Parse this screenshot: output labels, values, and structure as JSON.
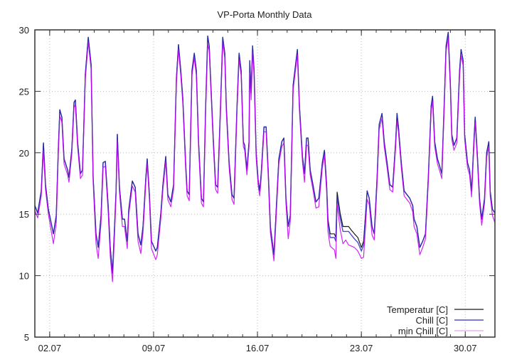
{
  "chart_data": {
    "type": "line",
    "title": "VP-Porta Monthly Data",
    "xlabel": "",
    "ylabel": "",
    "xlim": [
      1,
      32
    ],
    "ylim": [
      5,
      30
    ],
    "x_unit": "day of July",
    "grid": true,
    "legend_position": "bottom-right",
    "yticks": [
      5,
      10,
      15,
      20,
      25,
      30
    ],
    "xticks": [
      {
        "value": 2,
        "label": "02.07"
      },
      {
        "value": 9,
        "label": "09.07"
      },
      {
        "value": 16,
        "label": "16.07"
      },
      {
        "value": 23,
        "label": "23.07"
      },
      {
        "value": 30,
        "label": "30.07"
      }
    ],
    "x": [
      1.0,
      1.19,
      1.43,
      1.58,
      1.72,
      1.91,
      2.15,
      2.25,
      2.44,
      2.58,
      2.68,
      2.82,
      2.97,
      3.21,
      3.3,
      3.49,
      3.64,
      3.73,
      3.88,
      4.07,
      4.21,
      4.4,
      4.6,
      4.79,
      4.93,
      5.12,
      5.27,
      5.46,
      5.6,
      5.75,
      5.94,
      6.08,
      6.23,
      6.37,
      6.47,
      6.56,
      6.7,
      6.9,
      7.04,
      7.23,
      7.33,
      7.57,
      7.76,
      7.95,
      8.14,
      8.29,
      8.48,
      8.57,
      8.72,
      8.86,
      9.15,
      9.25,
      9.49,
      9.63,
      9.82,
      9.96,
      10.16,
      10.35,
      10.54,
      10.68,
      10.83,
      10.97,
      11.16,
      11.26,
      11.4,
      11.59,
      11.74,
      11.88,
      12.03,
      12.22,
      12.36,
      12.51,
      12.65,
      12.75,
      12.84,
      13.03,
      13.18,
      13.32,
      13.51,
      13.66,
      13.8,
      13.9,
      14.09,
      14.28,
      14.42,
      14.62,
      14.76,
      14.9,
      15.05,
      15.14,
      15.29,
      15.43,
      15.48,
      15.57,
      15.67,
      15.77,
      15.91,
      16.05,
      16.15,
      16.25,
      16.44,
      16.58,
      16.72,
      16.87,
      17.11,
      17.25,
      17.44,
      17.64,
      17.78,
      17.92,
      18.07,
      18.21,
      18.4,
      18.69,
      18.83,
      19.03,
      19.17,
      19.31,
      19.41,
      19.55,
      19.74,
      19.94,
      20.13,
      20.37,
      20.51,
      20.66,
      20.75,
      20.9,
      21.18,
      21.28,
      21.37,
      21.57,
      21.76,
      21.95,
      22.14,
      22.33,
      22.53,
      22.76,
      23.0,
      23.15,
      23.29,
      23.39,
      23.53,
      23.72,
      23.87,
      24.06,
      24.2,
      24.39,
      24.54,
      24.73,
      24.92,
      25.11,
      25.31,
      25.4,
      25.5,
      25.69,
      25.88,
      26.07,
      26.26,
      26.46,
      26.55,
      26.74,
      26.94,
      27.13,
      27.32,
      27.51,
      27.7,
      27.8,
      27.94,
      28.13,
      28.28,
      28.42,
      28.61,
      28.71,
      28.85,
      29.0,
      29.09,
      29.24,
      29.43,
      29.62,
      29.72,
      29.86,
      29.96,
      30.15,
      30.29,
      30.43,
      30.58,
      30.67,
      30.82,
      30.96,
      31.11,
      31.3,
      31.44,
      31.59,
      31.68,
      31.83,
      32.0
    ],
    "series": [
      {
        "name": "Temperatur [C]",
        "color": "#1a1a1a",
        "y": [
          15.7,
          15.1,
          16.9,
          20.8,
          17.4,
          15.4,
          14.0,
          13.4,
          14.9,
          20.3,
          23.5,
          22.9,
          19.5,
          18.6,
          18.0,
          20.3,
          24.1,
          24.3,
          20.9,
          18.3,
          18.6,
          26.4,
          29.4,
          27.2,
          18.0,
          13.4,
          12.3,
          14.9,
          19.2,
          19.3,
          15.7,
          12.3,
          10.2,
          14.0,
          16.9,
          21.5,
          17.2,
          14.6,
          14.6,
          12.8,
          15.4,
          17.7,
          17.2,
          13.4,
          12.5,
          14.0,
          18.0,
          19.5,
          16.6,
          12.8,
          12.0,
          12.3,
          15.1,
          17.4,
          19.7,
          16.6,
          16.0,
          17.4,
          26.1,
          28.8,
          26.7,
          24.4,
          19.2,
          16.9,
          16.6,
          26.7,
          28.1,
          26.7,
          20.9,
          16.3,
          16.0,
          23.8,
          29.5,
          28.7,
          26.1,
          20.9,
          17.4,
          17.2,
          23.8,
          29.4,
          28.1,
          23.8,
          19.2,
          16.6,
          16.3,
          23.8,
          28.1,
          26.7,
          20.9,
          20.6,
          18.6,
          20.9,
          27.5,
          24.9,
          28.7,
          26.7,
          20.0,
          17.7,
          16.9,
          18.3,
          22.1,
          22.1,
          18.6,
          14.0,
          11.7,
          15.1,
          19.5,
          20.9,
          21.2,
          16.3,
          14.0,
          14.9,
          25.5,
          28.4,
          23.8,
          19.7,
          18.3,
          21.2,
          21.2,
          18.6,
          17.4,
          16.0,
          16.3,
          19.2,
          20.2,
          17.4,
          14.6,
          13.4,
          13.4,
          13.1,
          16.8,
          15.1,
          14.0,
          14.0,
          14.0,
          13.7,
          13.4,
          13.1,
          12.3,
          12.8,
          15.1,
          16.9,
          16.3,
          14.0,
          13.4,
          18.0,
          22.3,
          23.2,
          20.9,
          19.2,
          17.4,
          17.2,
          20.9,
          23.2,
          22.1,
          19.2,
          16.9,
          16.6,
          16.3,
          15.7,
          14.6,
          14.0,
          12.3,
          12.8,
          13.4,
          18.0,
          23.8,
          24.6,
          20.9,
          19.5,
          18.9,
          18.3,
          24.9,
          28.7,
          29.8,
          25.5,
          21.5,
          20.6,
          21.2,
          26.7,
          28.4,
          27.5,
          21.5,
          19.2,
          18.6,
          16.9,
          20.9,
          22.9,
          19.7,
          16.3,
          14.6,
          16.3,
          20.0,
          20.9,
          16.9,
          15.4,
          15.1
        ]
      },
      {
        "name": "Chill [C]",
        "color": "#2c2cc4",
        "y": [
          15.7,
          15.1,
          16.9,
          20.8,
          17.4,
          15.4,
          14.0,
          13.4,
          14.9,
          20.3,
          23.5,
          22.9,
          19.5,
          18.6,
          18.0,
          20.3,
          24.1,
          24.3,
          20.9,
          18.3,
          18.6,
          26.4,
          29.4,
          27.2,
          18.0,
          13.4,
          12.3,
          14.9,
          19.2,
          19.3,
          15.7,
          12.3,
          10.2,
          14.0,
          16.9,
          21.5,
          17.2,
          14.6,
          14.6,
          12.8,
          15.4,
          17.7,
          17.2,
          13.4,
          12.5,
          14.0,
          18.0,
          19.5,
          16.6,
          12.8,
          12.0,
          12.3,
          15.1,
          17.4,
          19.7,
          16.6,
          16.0,
          17.4,
          26.1,
          28.8,
          26.7,
          24.4,
          19.2,
          16.9,
          16.6,
          26.7,
          28.1,
          26.7,
          20.9,
          16.3,
          16.0,
          23.8,
          29.5,
          28.7,
          26.1,
          20.9,
          17.4,
          17.2,
          23.8,
          29.4,
          28.1,
          23.8,
          19.2,
          16.6,
          16.3,
          23.8,
          28.1,
          26.7,
          20.9,
          20.6,
          18.6,
          20.9,
          27.5,
          24.9,
          28.7,
          26.7,
          20.0,
          17.7,
          16.9,
          18.3,
          22.1,
          22.1,
          18.6,
          14.0,
          11.7,
          15.1,
          19.5,
          20.9,
          21.2,
          16.3,
          14.0,
          14.9,
          25.5,
          28.4,
          23.8,
          19.7,
          18.3,
          21.2,
          21.2,
          18.6,
          17.4,
          16.0,
          16.3,
          19.2,
          20.2,
          17.4,
          14.4,
          13.1,
          13.1,
          12.8,
          16.4,
          14.7,
          13.6,
          13.6,
          13.6,
          13.3,
          13.0,
          12.7,
          12.0,
          12.5,
          15.1,
          16.9,
          16.3,
          14.0,
          13.4,
          18.0,
          22.3,
          23.2,
          20.9,
          19.2,
          17.4,
          17.2,
          20.9,
          23.2,
          22.1,
          19.2,
          16.9,
          16.6,
          16.3,
          15.7,
          14.6,
          14.0,
          12.3,
          12.8,
          13.4,
          18.0,
          23.8,
          24.6,
          20.9,
          19.5,
          18.9,
          18.3,
          24.9,
          28.7,
          29.8,
          25.5,
          21.5,
          20.6,
          21.2,
          26.7,
          28.4,
          27.5,
          21.5,
          19.2,
          18.6,
          16.9,
          20.9,
          22.9,
          19.7,
          16.3,
          14.6,
          16.3,
          20.0,
          20.9,
          16.9,
          15.4,
          15.1
        ]
      },
      {
        "name": "min Chill [C]",
        "color": "#c400f4",
        "legend_color": "#dca8ec",
        "y": [
          15.3,
          14.7,
          16.5,
          20.2,
          17.0,
          15.0,
          13.3,
          12.6,
          14.3,
          19.9,
          23.0,
          22.5,
          19.1,
          18.2,
          17.6,
          19.9,
          23.7,
          23.9,
          20.5,
          17.9,
          18.2,
          26.0,
          29.0,
          26.8,
          17.6,
          12.6,
          11.4,
          14.3,
          18.8,
          18.9,
          15.2,
          11.6,
          9.5,
          13.4,
          16.5,
          21.0,
          16.8,
          14.0,
          14.0,
          12.2,
          15.0,
          17.3,
          16.8,
          12.8,
          11.8,
          13.5,
          17.6,
          19.1,
          16.2,
          12.2,
          11.3,
          11.7,
          14.7,
          17.0,
          19.3,
          16.2,
          15.6,
          17.0,
          25.7,
          28.4,
          26.3,
          24.0,
          18.8,
          16.5,
          16.1,
          26.3,
          27.7,
          26.3,
          20.5,
          15.9,
          15.6,
          23.4,
          28.8,
          28.3,
          25.7,
          20.5,
          17.0,
          16.7,
          23.4,
          29.0,
          27.7,
          23.4,
          18.8,
          16.2,
          15.8,
          23.4,
          27.6,
          26.3,
          20.5,
          20.2,
          18.2,
          20.5,
          26.5,
          24.3,
          28.2,
          26.3,
          19.6,
          17.3,
          16.5,
          17.9,
          21.7,
          21.7,
          18.2,
          13.5,
          11.2,
          14.6,
          19.1,
          20.5,
          20.8,
          15.9,
          13.0,
          14.4,
          25.1,
          28.0,
          23.4,
          19.3,
          17.6,
          20.6,
          20.6,
          18.2,
          17.0,
          15.5,
          15.6,
          18.8,
          19.8,
          16.9,
          13.6,
          12.4,
          12.1,
          11.4,
          15.8,
          13.8,
          12.6,
          12.9,
          12.5,
          12.4,
          12.3,
          12.0,
          11.4,
          11.5,
          14.2,
          16.2,
          15.8,
          13.3,
          12.9,
          17.5,
          21.9,
          22.8,
          20.5,
          18.8,
          17.0,
          16.8,
          20.5,
          22.6,
          21.7,
          18.8,
          16.5,
          16.2,
          15.9,
          15.2,
          14.0,
          13.4,
          11.7,
          12.3,
          13.0,
          17.6,
          23.4,
          24.2,
          20.5,
          19.1,
          18.5,
          17.9,
          24.5,
          28.3,
          29.3,
          25.1,
          21.1,
          20.2,
          20.8,
          26.3,
          27.9,
          27.1,
          21.1,
          18.8,
          18.2,
          16.4,
          20.5,
          22.5,
          19.3,
          15.9,
          14.1,
          15.9,
          19.6,
          20.5,
          16.5,
          14.9,
          14.3
        ]
      }
    ]
  }
}
